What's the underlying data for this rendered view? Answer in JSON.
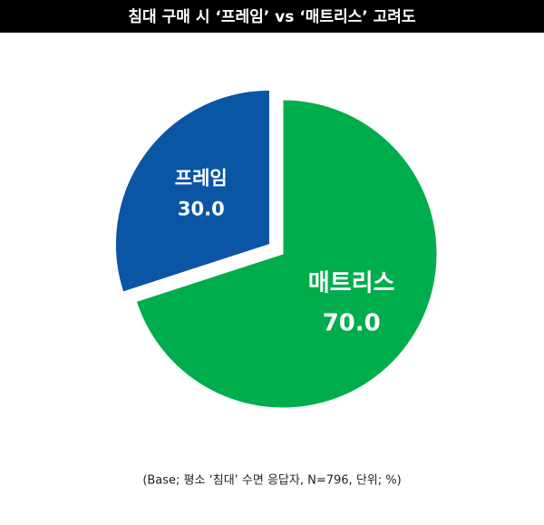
{
  "chart_data": {
    "type": "pie",
    "title": "침대 구매 시 ‘프레임’ vs ‘매트리스’ 고려도",
    "categories": [
      "매트리스",
      "프레임"
    ],
    "values": [
      70.0,
      30.0
    ],
    "value_labels": [
      "70.0",
      "30.0"
    ],
    "colors": [
      "#00ad4d",
      "#0a56a5"
    ],
    "exploded": [
      false,
      true
    ],
    "footnote": "(Base; 평소 ‘침대’ 수면 응답자, N=796, 단위; %)"
  }
}
